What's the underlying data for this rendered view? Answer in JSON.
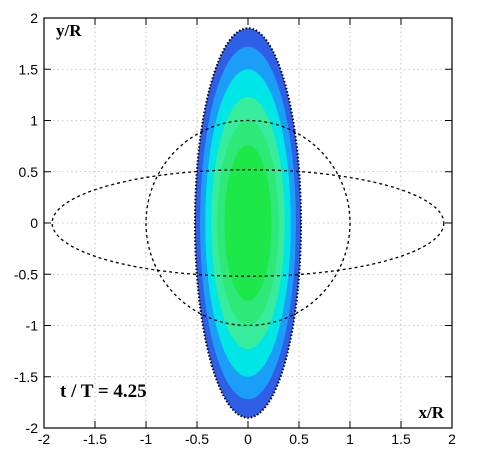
{
  "chart_data": {
    "type": "contour",
    "xlabel": "x/R",
    "ylabel": "y/R",
    "xlim": [
      -2,
      2
    ],
    "ylim": [
      -2,
      2
    ],
    "xticks": [
      -2,
      -1.5,
      -1,
      -0.5,
      0,
      0.5,
      1,
      1.5,
      2
    ],
    "yticks": [
      -2,
      -1.5,
      -1,
      -0.5,
      0,
      0.5,
      1,
      1.5,
      2
    ],
    "x_tick_labels": [
      "-2",
      "-1.5",
      "-1",
      "-0.5",
      "0",
      "0.5",
      "1",
      "1.5",
      "2"
    ],
    "y_tick_labels": [
      "-2",
      "-1.5",
      "-1",
      "-0.5",
      "0",
      "0.5",
      "1",
      "1.5",
      "2"
    ],
    "grid": "dotted",
    "annotation": "t / T = 4.25",
    "filled_contour": {
      "shape": "ellipse",
      "center": [
        0,
        0
      ],
      "levels": [
        {
          "semi_axes": [
            0.52,
            1.9
          ],
          "color": "#2f5fe6"
        },
        {
          "semi_axes": [
            0.47,
            1.72
          ],
          "color": "#1a9ef8"
        },
        {
          "semi_axes": [
            0.42,
            1.5
          ],
          "color": "#00e6e6"
        },
        {
          "semi_axes": [
            0.36,
            1.23
          ],
          "color": "#38ec9e"
        },
        {
          "semi_axes": [
            0.3,
            1.0
          ],
          "color": "#2ee878"
        },
        {
          "semi_axes": [
            0.23,
            0.76
          ],
          "color": "#1de84a"
        }
      ],
      "edge_style": "dotted",
      "edge_color": "#000000"
    },
    "reference_curves": [
      {
        "shape": "ellipse",
        "center": [
          0,
          0
        ],
        "semi_axes": [
          1.92,
          0.52
        ],
        "style": "dashed"
      },
      {
        "shape": "circle",
        "center": [
          0,
          0
        ],
        "radius": 1.0,
        "style": "dashed"
      }
    ]
  }
}
